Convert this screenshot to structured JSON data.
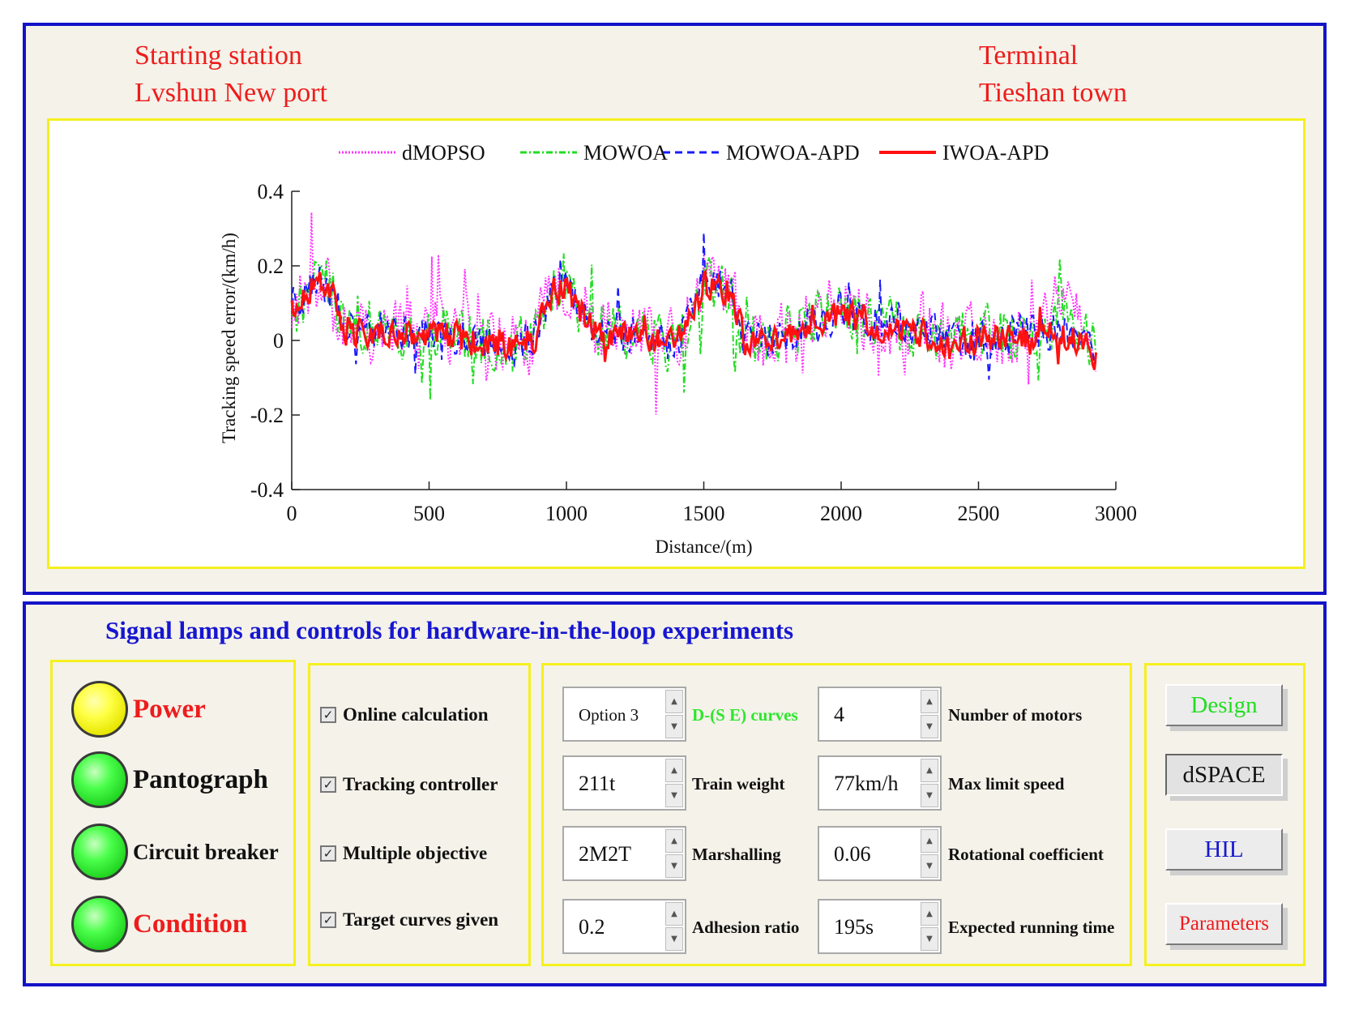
{
  "header": {
    "start_label": "Starting station",
    "start_name": "Lvshun New port",
    "end_label": "Terminal",
    "end_name": "Tieshan town"
  },
  "chart_data": {
    "type": "line",
    "xlabel": "Distance/(m)",
    "ylabel": "Tracking speed error/(km/h)",
    "xlim": [
      0,
      3000
    ],
    "ylim": [
      -0.4,
      0.4
    ],
    "xticks": [
      0,
      500,
      1000,
      1500,
      2000,
      2500,
      3000
    ],
    "yticks": [
      0.4,
      0.2,
      0,
      -0.2,
      -0.4
    ],
    "xtick_labels": [
      "0",
      "500",
      "1000",
      "1500",
      "2000",
      "2500",
      "3000"
    ],
    "ytick_labels": [
      "0.4",
      "0.2",
      "0",
      "-0.2",
      "-0.4"
    ],
    "legend_position": "top",
    "x": [
      0,
      50,
      100,
      150,
      200,
      300,
      400,
      500,
      600,
      700,
      800,
      880,
      950,
      1000,
      1050,
      1100,
      1200,
      1300,
      1400,
      1500,
      1550,
      1600,
      1650,
      1700,
      1800,
      1900,
      2000,
      2100,
      2200,
      2300,
      2400,
      2500,
      2600,
      2700,
      2800,
      2900,
      2930
    ],
    "series": [
      {
        "name": "dMOPSO",
        "color": "#ff33ff",
        "dash": "2,2",
        "amp": 0.1,
        "values": [
          0.09,
          0.12,
          0.15,
          0.14,
          0.02,
          0.03,
          0.02,
          0.04,
          0.02,
          0.0,
          -0.02,
          0.0,
          0.14,
          0.16,
          0.1,
          0.05,
          0.03,
          0.02,
          0.0,
          0.17,
          0.16,
          0.15,
          -0.01,
          0.0,
          0.03,
          0.05,
          0.12,
          0.05,
          0.03,
          0.05,
          0.01,
          0.02,
          0.0,
          0.05,
          0.1,
          0.0,
          -0.02
        ]
      },
      {
        "name": "MOWOA",
        "color": "#22dd22",
        "dash": "8,3,2,3",
        "amp": 0.085,
        "values": [
          0.09,
          0.12,
          0.16,
          0.13,
          0.03,
          0.04,
          0.02,
          0.03,
          0.02,
          -0.01,
          -0.03,
          0.01,
          0.14,
          0.15,
          0.1,
          0.03,
          0.02,
          0.01,
          -0.01,
          0.16,
          0.15,
          0.14,
          -0.02,
          0.0,
          0.02,
          0.04,
          0.1,
          0.06,
          0.04,
          0.03,
          0.0,
          0.02,
          0.02,
          0.03,
          0.08,
          0.0,
          -0.02
        ]
      },
      {
        "name": "MOWOA-APD",
        "color": "#1a1aff",
        "dash": "9,6",
        "amp": 0.06,
        "values": [
          0.09,
          0.13,
          0.15,
          0.13,
          0.03,
          0.03,
          0.02,
          0.03,
          0.01,
          -0.01,
          -0.02,
          0.01,
          0.13,
          0.15,
          0.09,
          0.03,
          0.02,
          0.01,
          -0.01,
          0.16,
          0.15,
          0.14,
          -0.01,
          0.0,
          0.02,
          0.03,
          0.09,
          0.05,
          0.04,
          0.03,
          0.0,
          0.01,
          0.01,
          0.02,
          0.03,
          -0.01,
          -0.03
        ]
      },
      {
        "name": "IWOA-APD",
        "color": "#ff1111",
        "dash": "",
        "amp": 0.045,
        "values": [
          0.09,
          0.13,
          0.15,
          0.12,
          0.02,
          0.02,
          0.01,
          0.02,
          0.01,
          -0.01,
          -0.02,
          0.0,
          0.13,
          0.14,
          0.08,
          0.02,
          0.01,
          0.0,
          -0.01,
          0.15,
          0.14,
          0.13,
          -0.01,
          -0.01,
          0.01,
          0.02,
          0.08,
          0.04,
          0.03,
          0.02,
          -0.01,
          0.01,
          0.0,
          0.01,
          0.02,
          -0.02,
          -0.05
        ]
      }
    ]
  },
  "controls": {
    "title": "Signal lamps and controls for hardware-in-the-loop experiments",
    "lamps": [
      {
        "label": "Power",
        "color": "#ee1c1c"
      },
      {
        "label": "Pantograph",
        "color": "#111111"
      },
      {
        "label": "Circuit breaker",
        "color": "#111111"
      },
      {
        "label": "Condition",
        "color": "#ee1c1c"
      }
    ],
    "check_mark": "✓",
    "checkboxes": [
      "Online calculation",
      "Tracking controller",
      "Multiple objective",
      "Target curves given"
    ],
    "spin_up": "▲",
    "spin_down": "▼",
    "left_fields": [
      {
        "value": "Option 3",
        "label": "D-(S E) curves"
      },
      {
        "value": "211t",
        "label": "Train weight"
      },
      {
        "value": "2M2T",
        "label": "Marshalling"
      },
      {
        "value": "0.2",
        "label": "Adhesion ratio"
      }
    ],
    "right_fields": [
      {
        "value": "4",
        "label": "Number of motors"
      },
      {
        "value": "77km/h",
        "label": "Max limit speed"
      },
      {
        "value": "0.06",
        "label": "Rotational coefficient"
      },
      {
        "value": "195s",
        "label": "Expected running time"
      }
    ],
    "buttons": [
      {
        "label": "Design",
        "color": "#22dd22"
      },
      {
        "label": "dSPACE",
        "color": "#111111"
      },
      {
        "label": "HIL",
        "color": "#1616d0"
      },
      {
        "label": "Parameters",
        "color": "#ee1c1c"
      }
    ]
  }
}
